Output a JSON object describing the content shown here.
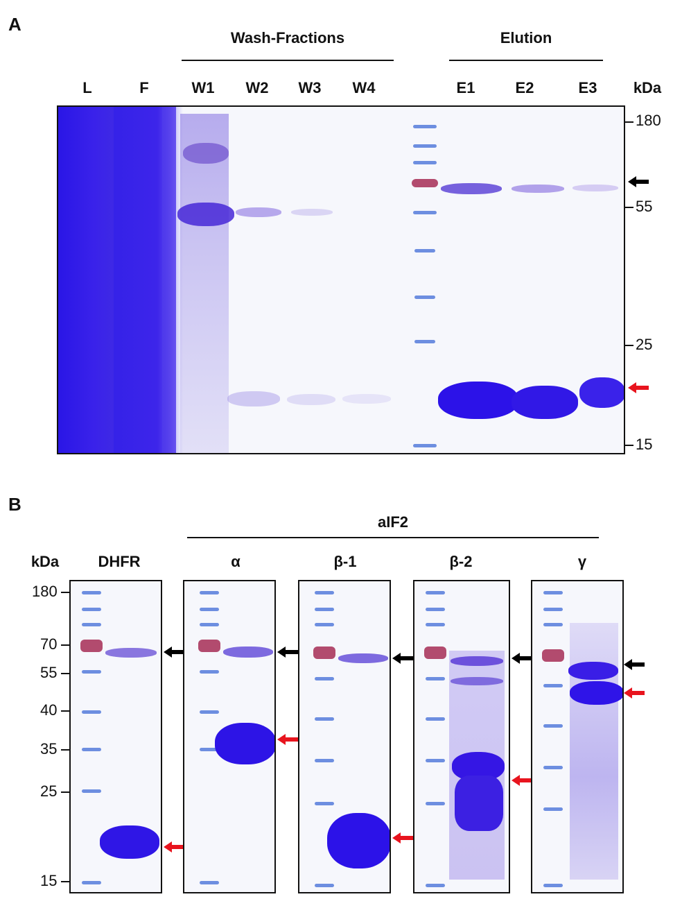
{
  "panel_a": {
    "letter": "A",
    "groups": {
      "wash": "Wash-Fractions",
      "elution": "Elution"
    },
    "lanes": [
      "L",
      "F",
      "W1",
      "W2",
      "W3",
      "W4",
      "E1",
      "E2",
      "E3"
    ],
    "unit": "kDa",
    "markers": [
      "180",
      "55",
      "25",
      "15"
    ]
  },
  "panel_b": {
    "letter": "B",
    "group": "aIF2",
    "unit": "kDa",
    "gels": [
      "DHFR",
      "α",
      "β-1",
      "β-2",
      "γ"
    ],
    "markers": [
      "180",
      "70",
      "55",
      "40",
      "35",
      "25",
      "15"
    ]
  },
  "colors": {
    "stain": "#2d1fd8",
    "black_arrow": "#000000",
    "red_arrow": "#e8141e"
  }
}
